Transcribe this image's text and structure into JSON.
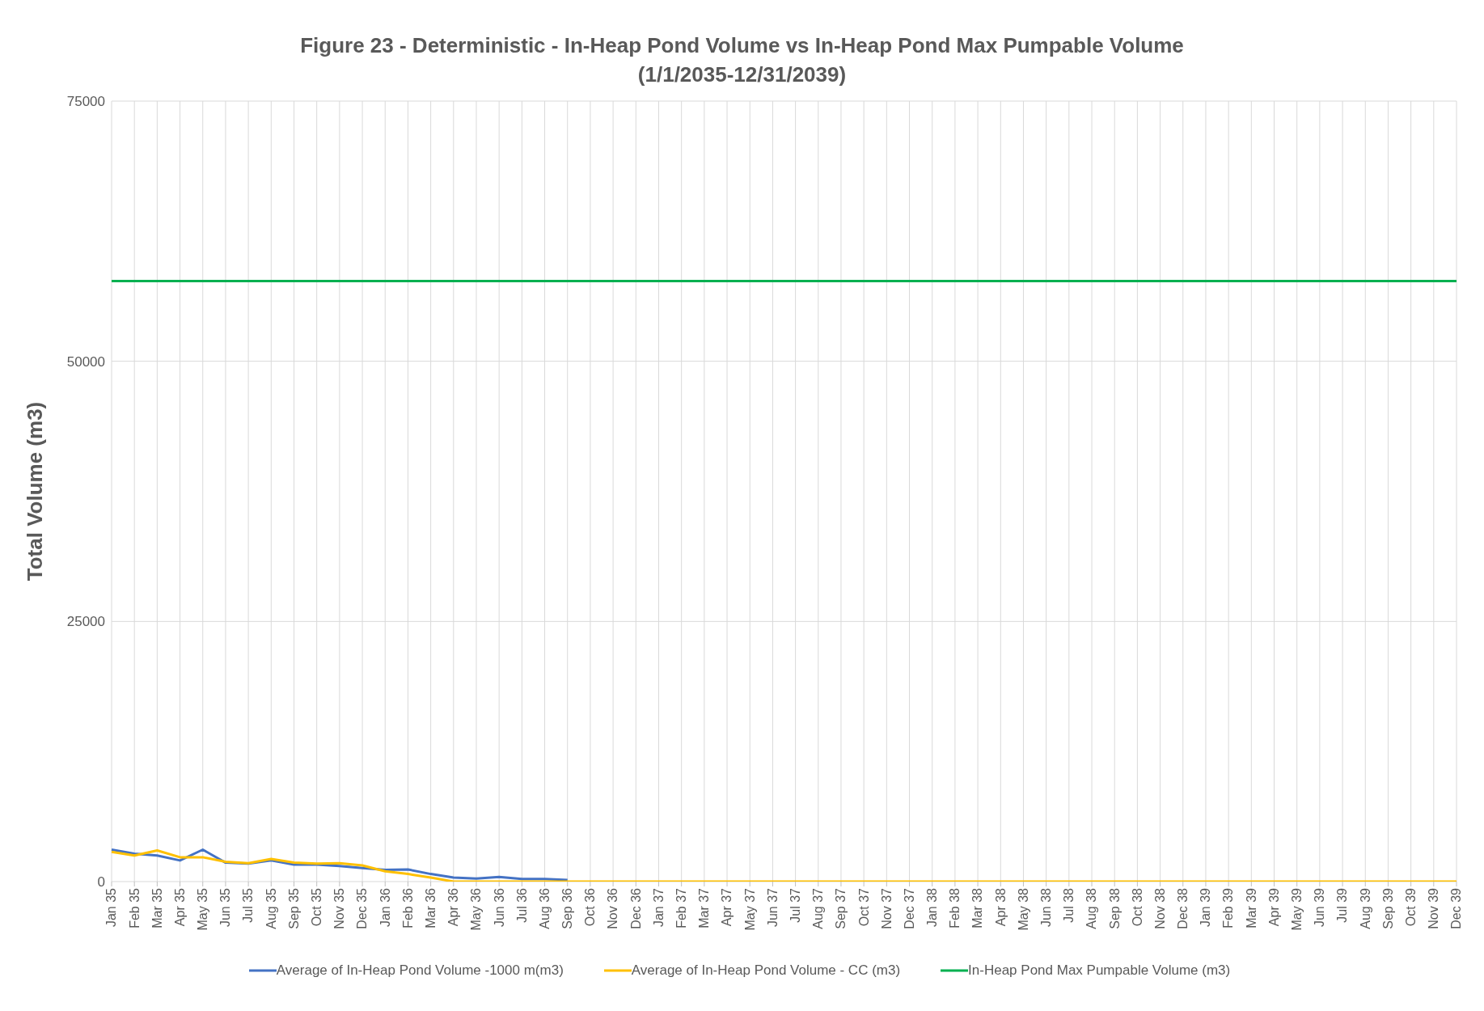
{
  "chart_data": {
    "type": "line",
    "title": "Figure 23 - Deterministic - In-Heap Pond Volume vs In-Heap Pond Max Pumpable Volume",
    "subtitle": "(1/1/2035-12/31/2039)",
    "ylabel": "Total Volume (m3)",
    "categories": [
      "Jan 35",
      "Feb 35",
      "Mar 35",
      "Apr 35",
      "May 35",
      "Jun 35",
      "Jul 35",
      "Aug 35",
      "Sep 35",
      "Oct 35",
      "Nov 35",
      "Dec 35",
      "Jan 36",
      "Feb 36",
      "Mar 36",
      "Apr 36",
      "May 36",
      "Jun 36",
      "Jul 36",
      "Aug 36",
      "Sep 36",
      "Oct 36",
      "Nov 36",
      "Dec 36",
      "Jan 37",
      "Feb 37",
      "Mar 37",
      "Apr 37",
      "May 37",
      "Jun 37",
      "Jul 37",
      "Aug 37",
      "Sep 37",
      "Oct 37",
      "Nov 37",
      "Dec 37",
      "Jan 38",
      "Feb 38",
      "Mar 38",
      "Apr 38",
      "May 38",
      "Jun 38",
      "Jul 38",
      "Aug 38",
      "Sep 38",
      "Oct 38",
      "Nov 38",
      "Dec 38",
      "Jan 39",
      "Feb 39",
      "Mar 39",
      "Apr 39",
      "May 39",
      "Jun 39",
      "Jul 39",
      "Aug 39",
      "Sep 39",
      "Oct 39",
      "Nov 39",
      "Dec 39"
    ],
    "series": [
      {
        "name": "Average of In-Heap Pond Volume -1000 m(m3)",
        "color": "#4472c4",
        "values": [
          3070,
          2680,
          2500,
          2030,
          3070,
          1820,
          1720,
          2030,
          1640,
          1640,
          1500,
          1300,
          1120,
          1170,
          730,
          390,
          290,
          440,
          260,
          260,
          160,
          null,
          null,
          null,
          null,
          null,
          null,
          null,
          null,
          null,
          null,
          null,
          null,
          null,
          null,
          null,
          null,
          null,
          null,
          null,
          null,
          null,
          null,
          null,
          null,
          null,
          null,
          null,
          null,
          null,
          null,
          null,
          null,
          null,
          null,
          null,
          null,
          null,
          null,
          null
        ]
      },
      {
        "name": "Average of In-Heap Pond Volume - CC (m3)",
        "color": "#ffc000",
        "values": [
          2860,
          2500,
          2990,
          2340,
          2340,
          1900,
          1770,
          2180,
          1820,
          1720,
          1770,
          1560,
          990,
          730,
          390,
          0,
          0,
          0,
          0,
          0,
          0,
          0,
          0,
          0,
          0,
          0,
          0,
          0,
          0,
          0,
          0,
          0,
          0,
          0,
          0,
          0,
          0,
          0,
          0,
          0,
          0,
          0,
          0,
          0,
          0,
          0,
          0,
          0,
          0,
          0,
          0,
          0,
          0,
          0,
          0,
          0,
          0,
          0,
          0,
          0
        ]
      },
      {
        "name": "In-Heap Pond Max Pumpable Volume (m3)",
        "color": "#00b050",
        "values": [
          57700,
          57700,
          57700,
          57700,
          57700,
          57700,
          57700,
          57700,
          57700,
          57700,
          57700,
          57700,
          57700,
          57700,
          57700,
          57700,
          57700,
          57700,
          57700,
          57700,
          57700,
          57700,
          57700,
          57700,
          57700,
          57700,
          57700,
          57700,
          57700,
          57700,
          57700,
          57700,
          57700,
          57700,
          57700,
          57700,
          57700,
          57700,
          57700,
          57700,
          57700,
          57700,
          57700,
          57700,
          57700,
          57700,
          57700,
          57700,
          57700,
          57700,
          57700,
          57700,
          57700,
          57700,
          57700,
          57700,
          57700,
          57700,
          57700,
          57700
        ]
      }
    ],
    "ylim": [
      0,
      75000
    ],
    "yticks": [
      0,
      25000,
      50000,
      75000
    ],
    "grid": true,
    "legend": "bottom",
    "marker": "none",
    "line_style": "solid"
  }
}
